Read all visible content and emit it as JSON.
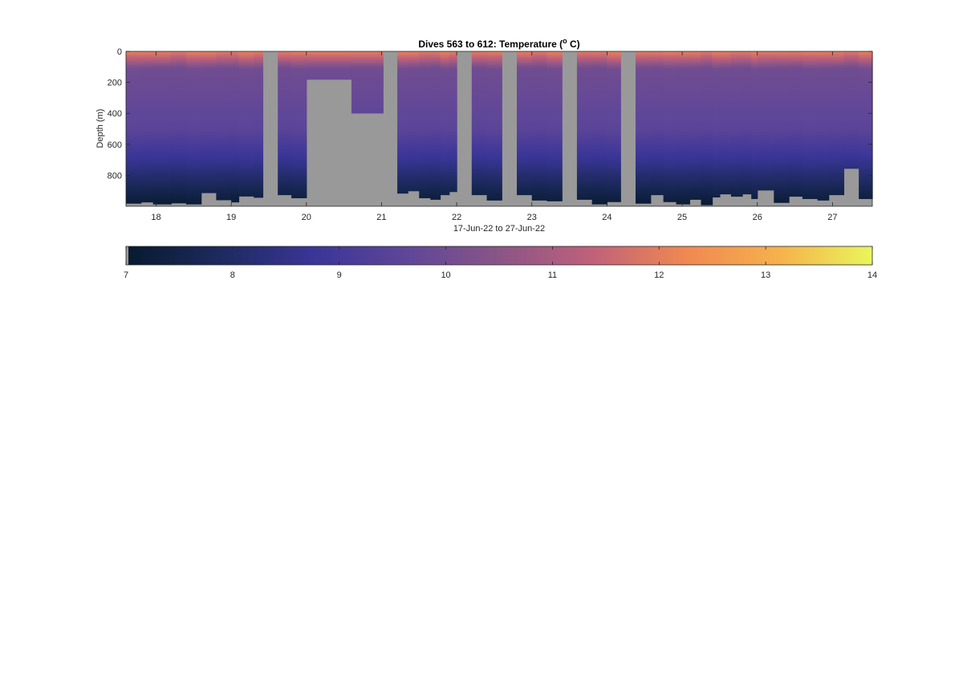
{
  "chart_data": {
    "type": "heatmap",
    "title": "Dives 563 to 612: Temperature (",
    "title_superscript": "o",
    "title_suffix": " C)",
    "xlabel": "17-Jun-22 to 27-Jun-22",
    "ylabel": "Depth (m)",
    "xlim": [
      17.6,
      27.53
    ],
    "ylim": [
      0,
      1000
    ],
    "y_reversed": true,
    "xticks": [
      18,
      19,
      20,
      21,
      22,
      23,
      24,
      25,
      26,
      27
    ],
    "xtick_labels": [
      "18",
      "19",
      "20",
      "21",
      "22",
      "23",
      "24",
      "25",
      "26",
      "27"
    ],
    "yticks": [
      0,
      200,
      400,
      600,
      800
    ],
    "ytick_labels": [
      "0",
      "200",
      "400",
      "600",
      "800"
    ],
    "nodata_color": "#999999",
    "profiles": [
      {
        "x0": 17.6,
        "x1": 17.8,
        "bottom": 980
      },
      {
        "x0": 17.8,
        "x1": 17.96,
        "bottom": 972
      },
      {
        "x0": 17.96,
        "x1": 18.2,
        "bottom": 985
      },
      {
        "x0": 18.2,
        "x1": 18.4,
        "bottom": 978
      },
      {
        "x0": 18.4,
        "x1": 18.6,
        "bottom": 985
      },
      {
        "x0": 18.6,
        "x1": 18.8,
        "bottom": 912
      },
      {
        "x0": 18.8,
        "x1": 19.0,
        "bottom": 958
      },
      {
        "x0": 19.0,
        "x1": 19.1,
        "bottom": 972
      },
      {
        "x0": 19.1,
        "x1": 19.3,
        "bottom": 934
      },
      {
        "x0": 19.3,
        "x1": 19.42,
        "bottom": 942
      },
      {
        "x0": 19.42,
        "x1": 19.62,
        "gap": true
      },
      {
        "x0": 19.62,
        "x1": 19.8,
        "bottom": 925
      },
      {
        "x0": 19.8,
        "x1": 20.0,
        "bottom": 945
      },
      {
        "x0": 20.0,
        "x1": 20.6,
        "bottom": 180
      },
      {
        "x0": 20.6,
        "x1": 21.02,
        "bottom": 398
      },
      {
        "x0": 21.02,
        "x1": 21.21,
        "gap": true
      },
      {
        "x0": 21.21,
        "x1": 21.35,
        "bottom": 915
      },
      {
        "x0": 21.35,
        "x1": 21.5,
        "bottom": 900
      },
      {
        "x0": 21.5,
        "x1": 21.65,
        "bottom": 945
      },
      {
        "x0": 21.65,
        "x1": 21.78,
        "bottom": 955
      },
      {
        "x0": 21.78,
        "x1": 21.9,
        "bottom": 925
      },
      {
        "x0": 21.9,
        "x1": 22.0,
        "bottom": 905
      },
      {
        "x0": 22.0,
        "x1": 22.2,
        "gap": true
      },
      {
        "x0": 22.2,
        "x1": 22.4,
        "bottom": 925
      },
      {
        "x0": 22.4,
        "x1": 22.6,
        "bottom": 960
      },
      {
        "x0": 22.6,
        "x1": 22.8,
        "gap": true
      },
      {
        "x0": 22.8,
        "x1": 23.0,
        "bottom": 925
      },
      {
        "x0": 23.0,
        "x1": 23.2,
        "bottom": 960
      },
      {
        "x0": 23.2,
        "x1": 23.4,
        "bottom": 965
      },
      {
        "x0": 23.4,
        "x1": 23.6,
        "gap": true
      },
      {
        "x0": 23.6,
        "x1": 23.8,
        "bottom": 955
      },
      {
        "x0": 23.8,
        "x1": 24.0,
        "bottom": 985
      },
      {
        "x0": 24.0,
        "x1": 24.18,
        "bottom": 970
      },
      {
        "x0": 24.18,
        "x1": 24.38,
        "gap": true
      },
      {
        "x0": 24.38,
        "x1": 24.58,
        "bottom": 980
      },
      {
        "x0": 24.58,
        "x1": 24.75,
        "bottom": 925
      },
      {
        "x0": 24.75,
        "x1": 24.92,
        "bottom": 970
      },
      {
        "x0": 24.92,
        "x1": 25.1,
        "bottom": 985
      },
      {
        "x0": 25.1,
        "x1": 25.25,
        "bottom": 955
      },
      {
        "x0": 25.25,
        "x1": 25.4,
        "bottom": 990
      },
      {
        "x0": 25.4,
        "x1": 25.5,
        "bottom": 940
      },
      {
        "x0": 25.5,
        "x1": 25.65,
        "bottom": 920
      },
      {
        "x0": 25.65,
        "x1": 25.8,
        "bottom": 935
      },
      {
        "x0": 25.8,
        "x1": 25.92,
        "bottom": 920
      },
      {
        "x0": 25.92,
        "x1": 26.0,
        "bottom": 950
      },
      {
        "x0": 26.0,
        "x1": 26.22,
        "bottom": 895
      },
      {
        "x0": 26.22,
        "x1": 26.42,
        "bottom": 975
      },
      {
        "x0": 26.42,
        "x1": 26.6,
        "bottom": 935
      },
      {
        "x0": 26.6,
        "x1": 26.8,
        "bottom": 950
      },
      {
        "x0": 26.8,
        "x1": 26.95,
        "bottom": 960
      },
      {
        "x0": 26.95,
        "x1": 27.15,
        "bottom": 925
      },
      {
        "x0": 27.15,
        "x1": 27.35,
        "bottom": 755
      },
      {
        "x0": 27.35,
        "x1": 27.53,
        "bottom": 950
      }
    ],
    "colorbar": {
      "min": 7,
      "max": 14,
      "ticks": [
        7,
        8,
        9,
        10,
        11,
        12,
        13,
        14
      ],
      "tick_labels": [
        "7",
        "8",
        "9",
        "10",
        "11",
        "12",
        "13",
        "14"
      ],
      "colormap": [
        "#071a2e",
        "#1d2a5e",
        "#3a3597",
        "#5e4699",
        "#8a5587",
        "#c0617a",
        "#f08851",
        "#f6b14c",
        "#e9f65b"
      ]
    }
  }
}
